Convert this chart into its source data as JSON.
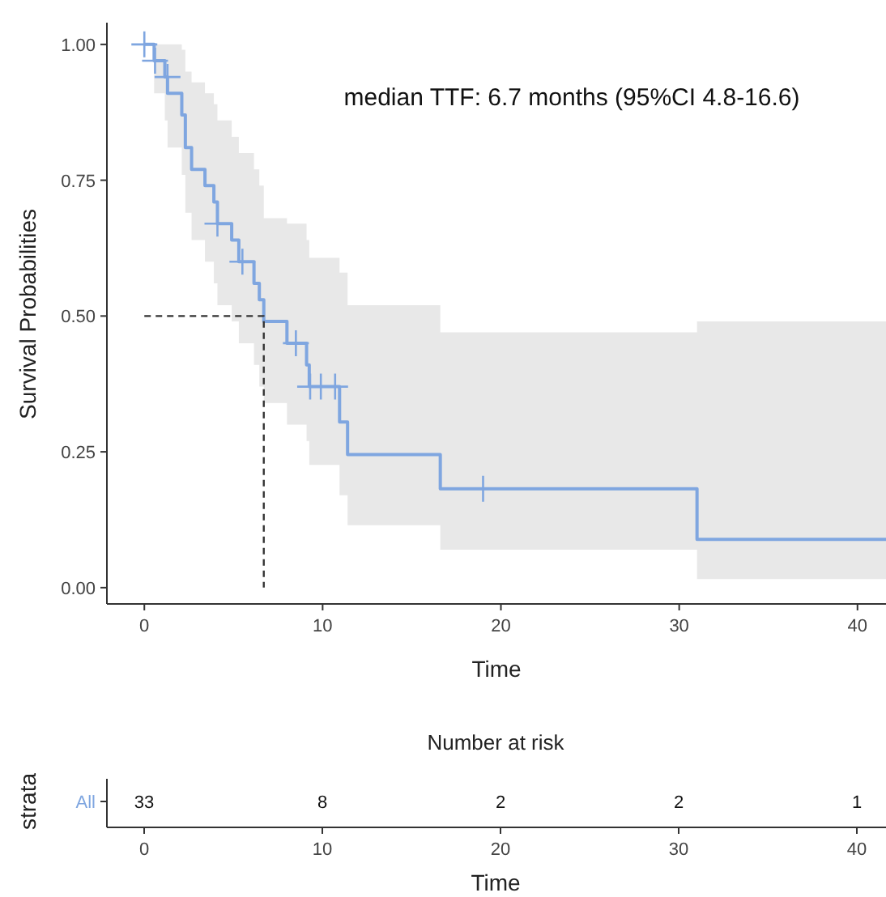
{
  "chart_data": [
    {
      "type": "step",
      "xlabel": "Time",
      "ylabel": "Survival Probabilities",
      "xlim": [
        -2.1,
        41.6
      ],
      "xticks": [
        0,
        10,
        20,
        30,
        40
      ],
      "ylim": [
        -0.03,
        1.04
      ],
      "yticks": [
        {
          "value": 0,
          "label": "0.00"
        },
        {
          "value": 0.25,
          "label": "0.25"
        },
        {
          "value": 0.5,
          "label": "0.50"
        },
        {
          "value": 0.75,
          "label": "0.75"
        },
        {
          "value": 1,
          "label": "1.00"
        }
      ],
      "grid": false,
      "annotations": [
        "median TTF: 6.7 months (95%CI 4.8-16.6)"
      ],
      "series": [
        {
          "type": "step",
          "color": "#7fa6e0",
          "x": [
            0,
            0.55,
            1.15,
            1.3,
            2.1,
            2.3,
            2.65,
            3.4,
            3.9,
            4.1,
            4.9,
            5.3,
            6.15,
            6.45,
            6.7,
            8.0,
            9.1,
            9.25,
            10.95,
            11.4,
            16.6,
            31.0,
            41.6
          ],
          "values": [
            1,
            0.97,
            0.94,
            0.91,
            0.87,
            0.81,
            0.77,
            0.74,
            0.71,
            0.67,
            0.64,
            0.6,
            0.56,
            0.53,
            0.49,
            0.45,
            0.41,
            0.37,
            0.305,
            0.245,
            0.182,
            0.089,
            0.089
          ],
          "lower": [
            1,
            0.91,
            0.86,
            0.81,
            0.76,
            0.69,
            0.64,
            0.6,
            0.56,
            0.52,
            0.49,
            0.45,
            0.41,
            0.37,
            0.34,
            0.3,
            0.27,
            0.226,
            0.17,
            0.115,
            0.07,
            0.016,
            0.016
          ],
          "upper": [
            1,
            1,
            1,
            1,
            0.99,
            0.95,
            0.93,
            0.91,
            0.89,
            0.86,
            0.83,
            0.8,
            0.77,
            0.74,
            0.68,
            0.67,
            0.64,
            0.607,
            0.58,
            0.52,
            0.47,
            0.49,
            0.49
          ]
        },
        {
          "type": "scatter",
          "color": "#7fa6e0",
          "marker": "cross",
          "x": [
            0,
            0.6,
            1.3,
            4.1,
            5.5,
            8.5,
            9.3,
            9.9,
            10.7,
            19.0
          ],
          "values": [
            1,
            0.97,
            0.94,
            0.67,
            0.6,
            0.45,
            0.37,
            0.37,
            0.37,
            0.182
          ]
        },
        {
          "type": "line",
          "color": "#333333",
          "line_style": "dashed",
          "x": [
            0,
            6.7,
            6.7
          ],
          "values": [
            0.5,
            0.5,
            0
          ]
        }
      ]
    },
    {
      "type": "heatmap",
      "title": "Number at risk",
      "xlabel": "Time",
      "ylabel": "strata",
      "categories": [
        "0",
        "10",
        "20",
        "30",
        "40"
      ],
      "y_categories": [
        "All"
      ],
      "data_labels": true,
      "cells": [
        [
          33,
          8,
          2,
          2,
          1
        ]
      ]
    }
  ]
}
